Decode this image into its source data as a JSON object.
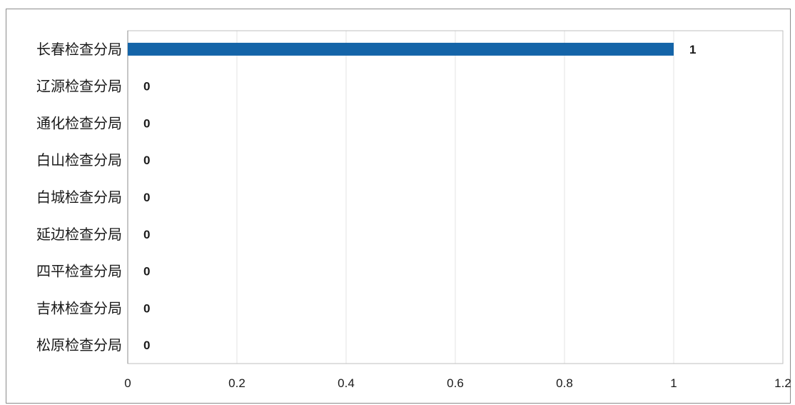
{
  "chart_data": {
    "type": "bar",
    "orientation": "horizontal",
    "categories": [
      "长春检查分局",
      "辽源检查分局",
      "通化检查分局",
      "白山检查分局",
      "白城检查分局",
      "延边检查分局",
      "四平检查分局",
      "吉林检查分局",
      "松原检查分局"
    ],
    "values": [
      1,
      0,
      0,
      0,
      0,
      0,
      0,
      0,
      0
    ],
    "xlim": [
      0,
      1.2
    ],
    "xticks": [
      "0",
      "0.2",
      "0.4",
      "0.6",
      "0.8",
      "1",
      "1.2"
    ],
    "title": "",
    "xlabel": "",
    "ylabel": "",
    "grid": true,
    "legend": "none",
    "data_labels": true,
    "bar_color": "#1464a8",
    "gridline_color": "#e3e3e3"
  }
}
